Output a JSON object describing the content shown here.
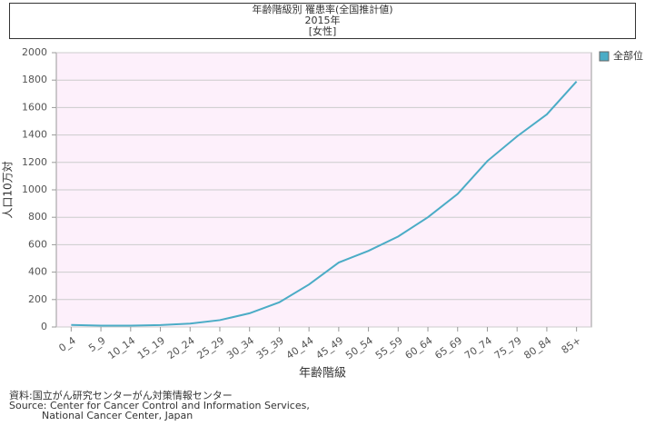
{
  "chart_data": {
    "type": "line",
    "title": [
      "年齢階級別 罹患率(全国推計値)",
      "2015年",
      "[女性]"
    ],
    "x_label": "年齢階級",
    "y_label": "人口10万対",
    "categories": [
      "0_4",
      "5_9",
      "10_14",
      "15_19",
      "20_24",
      "25_29",
      "30_34",
      "35_39",
      "40_44",
      "45_49",
      "50_54",
      "55_59",
      "60_64",
      "65_69",
      "70_74",
      "75_79",
      "80_84",
      "85+"
    ],
    "series": [
      {
        "name": "全部位",
        "color": "#4bacc6",
        "values": [
          15,
          10,
          10,
          14,
          25,
          50,
          100,
          180,
          310,
          470,
          555,
          660,
          800,
          970,
          1210,
          1390,
          1550,
          1790
        ]
      }
    ],
    "ylim": [
      0,
      2000
    ],
    "yticks": [
      0,
      200,
      400,
      600,
      800,
      1000,
      1200,
      1400,
      1600,
      1800,
      2000
    ],
    "grid": true,
    "legend": "top-right",
    "source": [
      "資料:国立がん研究センターがん対策情報センター",
      "Source: Center for Cancer Control and Information Services,",
      "National Cancer Center, Japan"
    ]
  }
}
